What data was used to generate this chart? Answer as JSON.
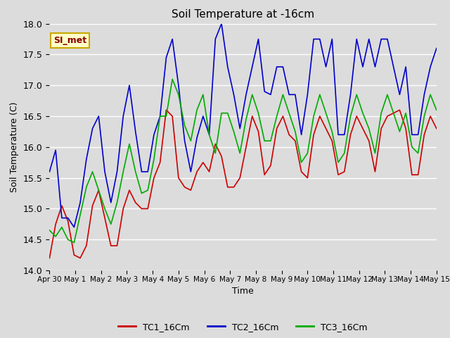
{
  "title": "Soil Temperature at -16cm",
  "xlabel": "Time",
  "ylabel": "Soil Temperature (C)",
  "ylim": [
    14.0,
    18.0
  ],
  "yticks": [
    14.0,
    14.5,
    15.0,
    15.5,
    16.0,
    16.5,
    17.0,
    17.5,
    18.0
  ],
  "bg_color": "#dcdcdc",
  "plot_bg_color": "#dcdcdc",
  "grid_color": "#ffffff",
  "annotation_text": "SI_met",
  "annotation_bg": "#ffffc8",
  "annotation_border": "#c8a800",
  "annotation_text_color": "#8b0000",
  "line_colors": {
    "TC1_16Cm": "#cc0000",
    "TC2_16Cm": "#0000cc",
    "TC3_16Cm": "#00aa00"
  },
  "legend_labels": [
    "TC1_16Cm",
    "TC2_16Cm",
    "TC3_16Cm"
  ],
  "xtick_labels": [
    "Apr 30",
    "May 1",
    "May 2",
    "May 3",
    "May 4",
    "May 5",
    "May 6",
    "May 7",
    "May 8",
    "May 9",
    "May 10",
    "May 11",
    "May 12",
    "May 13",
    "May 14",
    "May 15"
  ],
  "TC1_16Cm": [
    14.2,
    14.75,
    15.05,
    14.8,
    14.25,
    14.2,
    14.4,
    15.05,
    15.3,
    14.85,
    14.4,
    14.4,
    15.0,
    15.3,
    15.1,
    15.0,
    15.0,
    15.5,
    15.75,
    16.6,
    16.5,
    15.5,
    15.35,
    15.3,
    15.6,
    15.75,
    15.6,
    16.05,
    15.85,
    15.35,
    15.35,
    15.5,
    16.0,
    16.5,
    16.25,
    15.55,
    15.7,
    16.3,
    16.5,
    16.2,
    16.1,
    15.6,
    15.5,
    16.2,
    16.5,
    16.3,
    16.1,
    15.55,
    15.6,
    16.2,
    16.5,
    16.3,
    16.1,
    15.6,
    16.3,
    16.5,
    16.55,
    16.6,
    16.3,
    15.55,
    15.55,
    16.2,
    16.5,
    16.3
  ],
  "TC2_16Cm": [
    15.6,
    15.95,
    14.85,
    14.85,
    14.7,
    15.1,
    15.8,
    16.3,
    16.5,
    15.6,
    15.1,
    15.6,
    16.5,
    17.0,
    16.25,
    15.6,
    15.6,
    16.2,
    16.5,
    17.45,
    17.75,
    17.0,
    16.1,
    15.6,
    16.15,
    16.5,
    16.2,
    17.75,
    18.0,
    17.3,
    16.85,
    16.3,
    16.85,
    17.3,
    17.75,
    16.9,
    16.85,
    17.3,
    17.3,
    16.85,
    16.85,
    16.2,
    16.85,
    17.75,
    17.75,
    17.3,
    17.75,
    16.2,
    16.2,
    16.85,
    17.75,
    17.3,
    17.75,
    17.3,
    17.75,
    17.75,
    17.3,
    16.85,
    17.3,
    16.2,
    16.2,
    16.85,
    17.3,
    17.6
  ],
  "TC3_16Cm": [
    14.65,
    14.55,
    14.7,
    14.5,
    14.45,
    14.9,
    15.35,
    15.6,
    15.3,
    15.0,
    14.75,
    15.1,
    15.6,
    16.05,
    15.6,
    15.25,
    15.3,
    15.8,
    16.5,
    16.5,
    17.1,
    16.85,
    16.35,
    16.1,
    16.6,
    16.85,
    16.2,
    15.9,
    16.55,
    16.55,
    16.25,
    15.9,
    16.45,
    16.85,
    16.55,
    16.1,
    16.1,
    16.5,
    16.85,
    16.55,
    16.25,
    15.75,
    15.9,
    16.5,
    16.85,
    16.55,
    16.25,
    15.75,
    15.9,
    16.5,
    16.85,
    16.55,
    16.3,
    15.9,
    16.55,
    16.85,
    16.55,
    16.25,
    16.55,
    16.0,
    15.9,
    16.5,
    16.85,
    16.6
  ]
}
